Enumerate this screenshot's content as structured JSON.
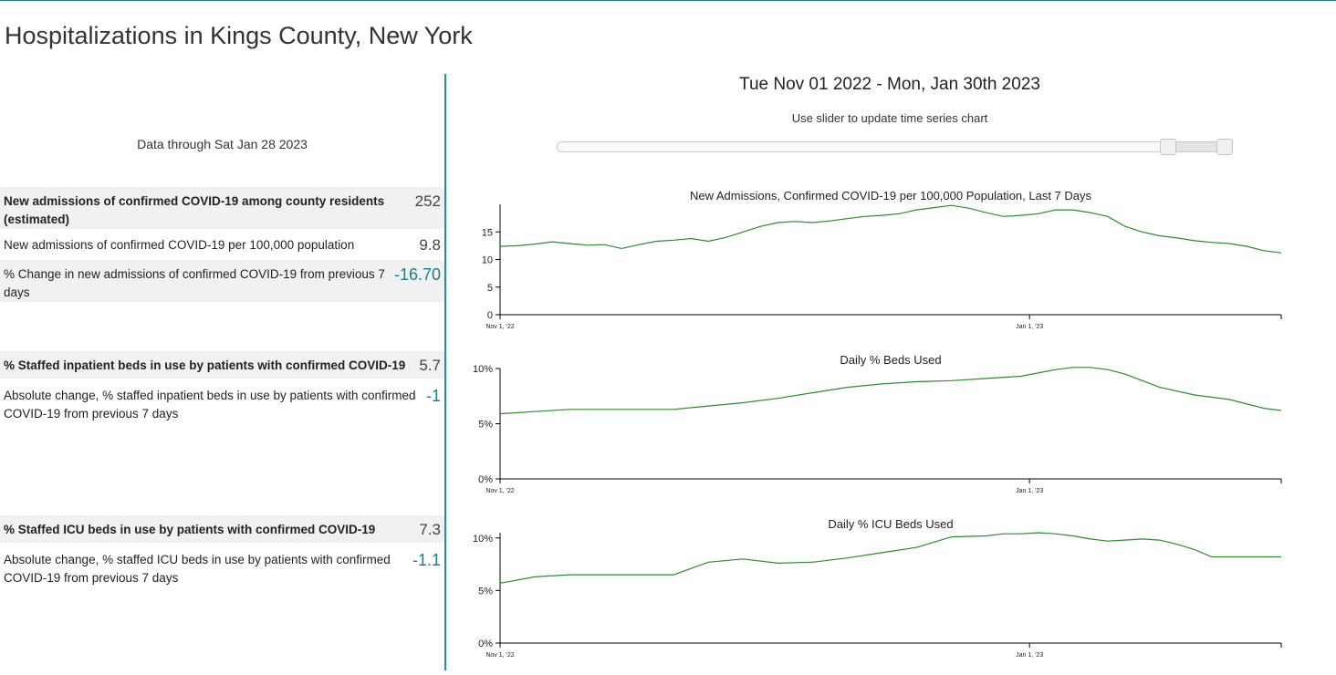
{
  "page_title": "Hospitalizations in Kings County, New York",
  "left": {
    "data_through": "Data through Sat Jan 28 2023",
    "stats": [
      {
        "label": "New admissions of confirmed COVID-19 among county residents (estimated)",
        "value": "252"
      },
      {
        "label": "New admissions of confirmed COVID-19 per 100,000 population",
        "value": "9.8"
      },
      {
        "label": "% Change in new admissions of confirmed COVID-19 from previous 7 days",
        "value": "-16.70"
      },
      {
        "label": "% Staffed inpatient beds in use by patients with confirmed COVID-19",
        "value": "5.7"
      },
      {
        "label": "Absolute change, % staffed inpatient beds in use by patients with confirmed COVID-19 from previous 7 days",
        "value": "-1"
      },
      {
        "label": "% Staffed ICU beds in use by patients with confirmed COVID-19",
        "value": "7.3"
      },
      {
        "label": "Absolute change, % staffed ICU beds in use by patients with confirmed COVID-19 from previous 7 days",
        "value": "-1.1"
      }
    ]
  },
  "right": {
    "range_title": "Tue Nov 01 2022 - Mon, Jan 30th 2023",
    "slider_hint": "Use slider to update time series chart",
    "slider": {
      "start_fraction": 0.906,
      "end_fraction": 0.989
    }
  },
  "colors": {
    "accent": "#1b7f86",
    "line": "#2e8b2e",
    "shaded_row": "#f1f1f1"
  },
  "chart_data": [
    {
      "type": "line",
      "title": "New Admissions, Confirmed COVID-19 per 100,000 Population, Last 7 Days",
      "x_range": [
        "Nov 1, '22",
        "Jan 30, '23"
      ],
      "x_ticks": [
        {
          "day": 0,
          "label": "Nov 1, '22"
        },
        {
          "day": 61,
          "label": "Jan 1, '23"
        }
      ],
      "ylim": [
        0,
        20
      ],
      "y_ticks": [
        {
          "value": 0,
          "label": "0"
        },
        {
          "value": 5,
          "label": "5"
        },
        {
          "value": 10,
          "label": "10"
        },
        {
          "value": 15,
          "label": "15"
        }
      ],
      "series": [
        {
          "name": "New admissions per 100k",
          "x_days": [
            0,
            2,
            4,
            6,
            8,
            10,
            12,
            14,
            16,
            18,
            20,
            22,
            24,
            26,
            28,
            30,
            32,
            34,
            36,
            38,
            40,
            42,
            44,
            46,
            48,
            50,
            52,
            54,
            56,
            58,
            60,
            62,
            64,
            66,
            68,
            70,
            72,
            74,
            76,
            78,
            80,
            82,
            84,
            86,
            88,
            90
          ],
          "values": [
            12.4,
            12.5,
            12.8,
            13.2,
            12.9,
            12.6,
            12.7,
            12.0,
            12.7,
            13.3,
            13.5,
            13.8,
            13.3,
            14.0,
            15.0,
            16.0,
            16.7,
            16.9,
            16.7,
            17.0,
            17.4,
            17.8,
            18.0,
            18.3,
            19.0,
            19.4,
            19.8,
            19.3,
            18.5,
            17.8,
            18.0,
            18.3,
            19.0,
            19.0,
            18.5,
            17.8,
            16.0,
            15.0,
            14.3,
            13.9,
            13.4,
            13.1,
            12.9,
            12.4,
            11.6,
            11.2
          ]
        }
      ]
    },
    {
      "type": "line",
      "title": "Daily % Beds Used",
      "x_range": [
        "Nov 1, '22",
        "Jan 30, '23"
      ],
      "x_ticks": [
        {
          "day": 0,
          "label": "Nov 1, '22"
        },
        {
          "day": 61,
          "label": "Jan 1, '23"
        }
      ],
      "ylim": [
        0,
        10
      ],
      "y_ticks": [
        {
          "value": 0,
          "label": "0%"
        },
        {
          "value": 5,
          "label": "5%"
        },
        {
          "value": 10,
          "label": "10%"
        }
      ],
      "series": [
        {
          "name": "% beds used",
          "x_days": [
            0,
            4,
            8,
            12,
            16,
            20,
            24,
            28,
            32,
            36,
            40,
            44,
            48,
            52,
            56,
            60,
            64,
            66,
            68,
            70,
            72,
            76,
            80,
            84,
            88,
            90
          ],
          "values": [
            5.9,
            6.1,
            6.3,
            6.3,
            6.3,
            6.3,
            6.6,
            6.9,
            7.3,
            7.8,
            8.3,
            8.6,
            8.8,
            8.9,
            9.1,
            9.3,
            9.9,
            10.1,
            10.1,
            9.9,
            9.5,
            8.3,
            7.6,
            7.2,
            6.4,
            6.2
          ]
        }
      ]
    },
    {
      "type": "line",
      "title": "Daily % ICU Beds Used",
      "x_range": [
        "Nov 1, '22",
        "Jan 30, '23"
      ],
      "x_ticks": [
        {
          "day": 0,
          "label": "Nov 1, '22"
        },
        {
          "day": 61,
          "label": "Jan 1, '23"
        }
      ],
      "ylim": [
        0,
        10.5
      ],
      "y_ticks": [
        {
          "value": 0,
          "label": "0%"
        },
        {
          "value": 5,
          "label": "5%"
        },
        {
          "value": 10,
          "label": "10%"
        }
      ],
      "series": [
        {
          "name": "% ICU beds used",
          "x_days": [
            0,
            4,
            8,
            12,
            16,
            20,
            24,
            28,
            32,
            36,
            40,
            44,
            48,
            52,
            56,
            58,
            60,
            62,
            64,
            66,
            68,
            70,
            72,
            74,
            76,
            78,
            80,
            82,
            84,
            86,
            88,
            90
          ],
          "values": [
            5.7,
            6.3,
            6.5,
            6.5,
            6.5,
            6.5,
            7.7,
            8.0,
            7.6,
            7.7,
            8.1,
            8.6,
            9.1,
            10.1,
            10.2,
            10.4,
            10.4,
            10.5,
            10.4,
            10.2,
            9.9,
            9.7,
            9.8,
            9.9,
            9.8,
            9.4,
            8.9,
            8.2,
            8.2,
            8.2,
            8.2,
            8.2
          ]
        }
      ]
    }
  ]
}
